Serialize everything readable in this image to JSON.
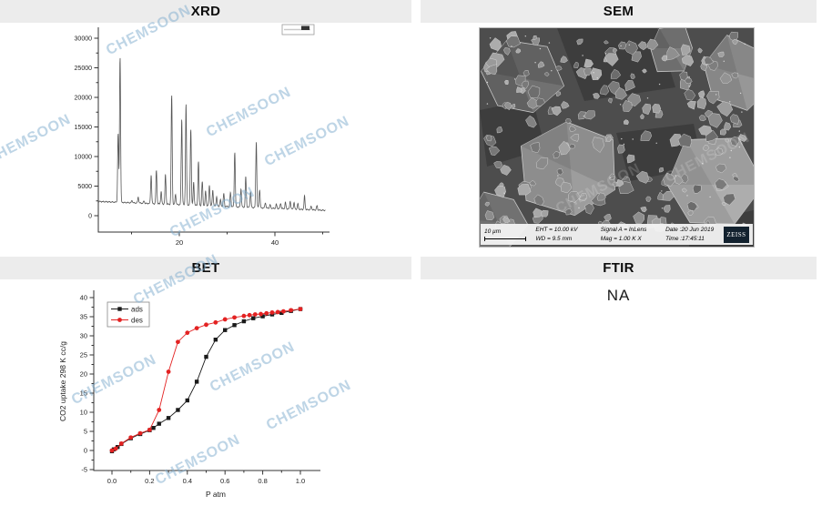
{
  "panels": {
    "xrd": {
      "title": "XRD"
    },
    "sem": {
      "title": "SEM"
    },
    "bet": {
      "title": "BET"
    },
    "ftir": {
      "title": "FTIR",
      "body": "NA"
    }
  },
  "watermark": {
    "text": "CHEMSOON",
    "color": "#7dacd0"
  },
  "sem": {
    "info_bar": {
      "scale_label": "10 µm",
      "eht": "EHT = 10.00 kV",
      "wd": "WD =  9.5 mm",
      "signal": "Signal A = InLens",
      "mag": "Mag =   1.00 K X",
      "date": "Date :20 Jun 2019",
      "time": "Time :17:45:11",
      "vendor": "ZEISS"
    }
  },
  "chart_data": [
    {
      "id": "xrd",
      "type": "line",
      "title": "XRD powder diffraction pattern",
      "xlabel": "",
      "ylabel": "",
      "xlim": [
        3.05,
        50.6
      ],
      "ylim": [
        -2770,
        31850
      ],
      "xticks_labeled": [
        20,
        40
      ],
      "xticks_minor": [
        10,
        30,
        50
      ],
      "yticks_labeled": [
        0,
        5000,
        10000,
        15000,
        20000,
        25000,
        30000
      ],
      "ytick_minor_step": 2500,
      "line_color": "#565656",
      "baseline": {
        "at_start": 2400,
        "at_end": 900
      },
      "peaks": [
        [
          7.2,
          11600
        ],
        [
          7.6,
          24500
        ],
        [
          10.1,
          400
        ],
        [
          11.4,
          1000
        ],
        [
          12.6,
          400
        ],
        [
          14.1,
          4800
        ],
        [
          15.2,
          5600
        ],
        [
          16.2,
          2100
        ],
        [
          17.1,
          5000
        ],
        [
          18.4,
          18400
        ],
        [
          19.2,
          1700
        ],
        [
          20.5,
          14500
        ],
        [
          21.4,
          17000
        ],
        [
          22.4,
          12800
        ],
        [
          23.0,
          3900
        ],
        [
          24.0,
          7400
        ],
        [
          24.8,
          4000
        ],
        [
          25.5,
          2500
        ],
        [
          26.3,
          3500
        ],
        [
          27.0,
          2700
        ],
        [
          27.8,
          1600
        ],
        [
          28.6,
          1100
        ],
        [
          29.3,
          2200
        ],
        [
          30.7,
          2400
        ],
        [
          31.6,
          9200
        ],
        [
          32.9,
          3100
        ],
        [
          33.9,
          5200
        ],
        [
          34.9,
          2700
        ],
        [
          36.1,
          11200
        ],
        [
          36.8,
          3000
        ],
        [
          38.0,
          900
        ],
        [
          39.0,
          600
        ],
        [
          40.3,
          700
        ],
        [
          41.2,
          900
        ],
        [
          42.2,
          1100
        ],
        [
          43.2,
          1300
        ],
        [
          44.0,
          1100
        ],
        [
          44.8,
          900
        ],
        [
          46.2,
          2300
        ],
        [
          47.6,
          600
        ],
        [
          48.8,
          700
        ]
      ]
    },
    {
      "id": "bet",
      "type": "scatter",
      "title": "CO2 adsorption-desorption isotherm",
      "xlabel": "P atm",
      "ylabel": "CO2 uptake  298 K  cc/g",
      "xlim": [
        -0.08,
        1.1
      ],
      "ylim": [
        -6,
        42.5
      ],
      "xticks": [
        0.0,
        0.2,
        0.4,
        0.6,
        0.8,
        1.0
      ],
      "yticks": [
        -5,
        0,
        5,
        10,
        15,
        20,
        25,
        30,
        35,
        40
      ],
      "legend": {
        "position": "upper-left",
        "entries": [
          "ads",
          "des"
        ]
      },
      "series": [
        {
          "name": "ads",
          "color": "#1a1a1a",
          "marker": "square",
          "x": [
            0.0,
            0.01,
            0.03,
            0.05,
            0.1,
            0.15,
            0.2,
            0.22,
            0.25,
            0.3,
            0.35,
            0.4,
            0.45,
            0.5,
            0.55,
            0.6,
            0.65,
            0.7,
            0.75,
            0.8,
            0.85,
            0.9,
            0.95,
            1.0
          ],
          "y": [
            -0.2,
            0.3,
            0.9,
            1.7,
            3.2,
            4.3,
            5.3,
            5.9,
            7.0,
            8.5,
            10.6,
            13.1,
            18.0,
            24.5,
            29.0,
            31.5,
            32.8,
            33.8,
            34.6,
            35.1,
            35.6,
            36.0,
            36.5,
            37.0
          ]
        },
        {
          "name": "des",
          "color": "#e32222",
          "marker": "circle",
          "x": [
            0.0,
            0.02,
            0.05,
            0.1,
            0.15,
            0.2,
            0.25,
            0.3,
            0.35,
            0.4,
            0.45,
            0.5,
            0.55,
            0.6,
            0.65,
            0.7,
            0.73,
            0.76,
            0.79,
            0.82,
            0.85,
            0.88,
            0.91,
            0.95,
            1.0
          ],
          "y": [
            0.0,
            0.5,
            1.8,
            3.4,
            4.5,
            5.4,
            10.6,
            20.6,
            28.4,
            30.8,
            32.0,
            32.9,
            33.5,
            34.3,
            34.8,
            35.2,
            35.4,
            35.6,
            35.7,
            35.9,
            36.1,
            36.2,
            36.4,
            36.7,
            37.0
          ]
        }
      ]
    }
  ]
}
